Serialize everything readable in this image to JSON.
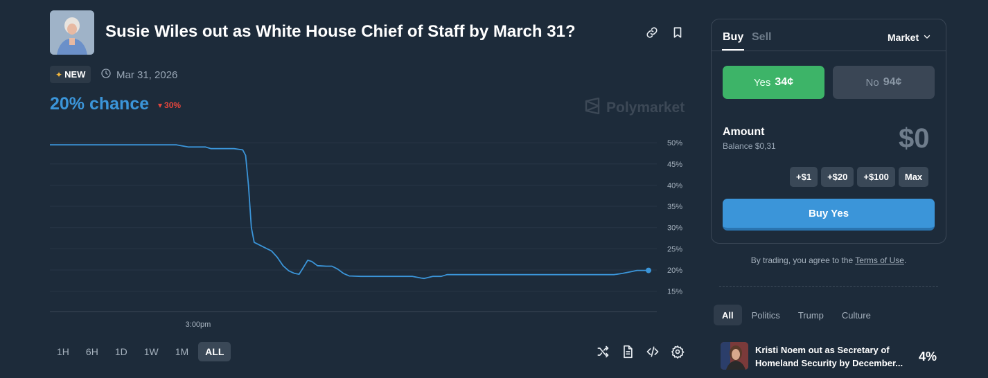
{
  "market": {
    "title": "Susie Wiles out as White House Chief of Staff by March 31?",
    "badge": "NEW",
    "end_date": "Mar 31, 2026",
    "chance": "20% chance",
    "change": "30%",
    "watermark": "Polymarket"
  },
  "colors": {
    "background": "#1d2b3a",
    "accent": "#3b95d9",
    "yes": "#3db468",
    "negative": "#e6463d"
  },
  "icons": {
    "link": "link-icon",
    "bookmark": "bookmark-icon",
    "clock": "clock-icon",
    "shuffle": "shuffle-icon",
    "document": "document-icon",
    "embed": "code-icon",
    "settings": "gear-icon"
  },
  "chart_data": {
    "type": "line",
    "title": "",
    "xlabel": "",
    "ylabel": "",
    "x_ticks": [
      "3:00pm"
    ],
    "y_ticks": [
      "50%",
      "45%",
      "40%",
      "35%",
      "30%",
      "25%",
      "20%",
      "15%"
    ],
    "ylim": [
      12,
      51
    ],
    "grid": true,
    "series": [
      {
        "color": "#3b95d9",
        "points": [
          [
            0,
            49.5
          ],
          [
            22,
            49.5
          ],
          [
            24,
            49
          ],
          [
            27,
            49
          ],
          [
            28,
            48.6
          ],
          [
            32,
            48.6
          ],
          [
            33.5,
            48.3
          ],
          [
            34,
            47
          ],
          [
            34.5,
            40
          ],
          [
            35,
            30
          ],
          [
            35.5,
            26.5
          ],
          [
            37,
            25.5
          ],
          [
            38.5,
            24.5
          ],
          [
            39.5,
            23
          ],
          [
            40.5,
            21
          ],
          [
            41.5,
            19.8
          ],
          [
            42.5,
            19.2
          ],
          [
            43.3,
            19
          ],
          [
            44,
            20.5
          ],
          [
            44.8,
            22.3
          ],
          [
            45.5,
            22
          ],
          [
            46.5,
            21
          ],
          [
            48,
            20.9
          ],
          [
            49,
            20.9
          ],
          [
            50,
            20.2
          ],
          [
            51,
            19.2
          ],
          [
            52,
            18.6
          ],
          [
            54,
            18.5
          ],
          [
            56,
            18.5
          ],
          [
            58,
            18.5
          ],
          [
            61,
            18.5
          ],
          [
            63,
            18.5
          ],
          [
            64.5,
            18.1
          ],
          [
            65,
            18
          ],
          [
            66.5,
            18.5
          ],
          [
            68,
            18.5
          ],
          [
            69,
            18.9
          ],
          [
            71,
            18.9
          ],
          [
            80,
            18.9
          ],
          [
            90,
            18.9
          ],
          [
            98,
            18.9
          ],
          [
            99.5,
            19.2
          ],
          [
            101,
            19.6
          ],
          [
            102,
            19.9
          ],
          [
            104,
            19.9
          ]
        ]
      }
    ]
  },
  "range_buttons": [
    "1H",
    "6H",
    "1D",
    "1W",
    "1M",
    "ALL"
  ],
  "active_range": "ALL",
  "trade": {
    "tab_buy": "Buy",
    "tab_sell": "Sell",
    "order_type": "Market",
    "yes_label": "Yes",
    "yes_price": "34¢",
    "no_label": "No",
    "no_price": "94¢",
    "amount_label": "Amount",
    "balance": "Balance $0,31",
    "amount_value": "$0",
    "quick": [
      "+$1",
      "+$20",
      "+$100",
      "Max"
    ],
    "buy_button": "Buy Yes"
  },
  "terms": {
    "prefix": "By trading, you agree to the ",
    "link": "Terms of Use",
    "suffix": "."
  },
  "categories": [
    "All",
    "Politics",
    "Trump",
    "Culture"
  ],
  "related": {
    "title_line1": "Kristi Noem out as Secretary of",
    "title_line2": "Homeland Security by December...",
    "pct": "4%"
  }
}
